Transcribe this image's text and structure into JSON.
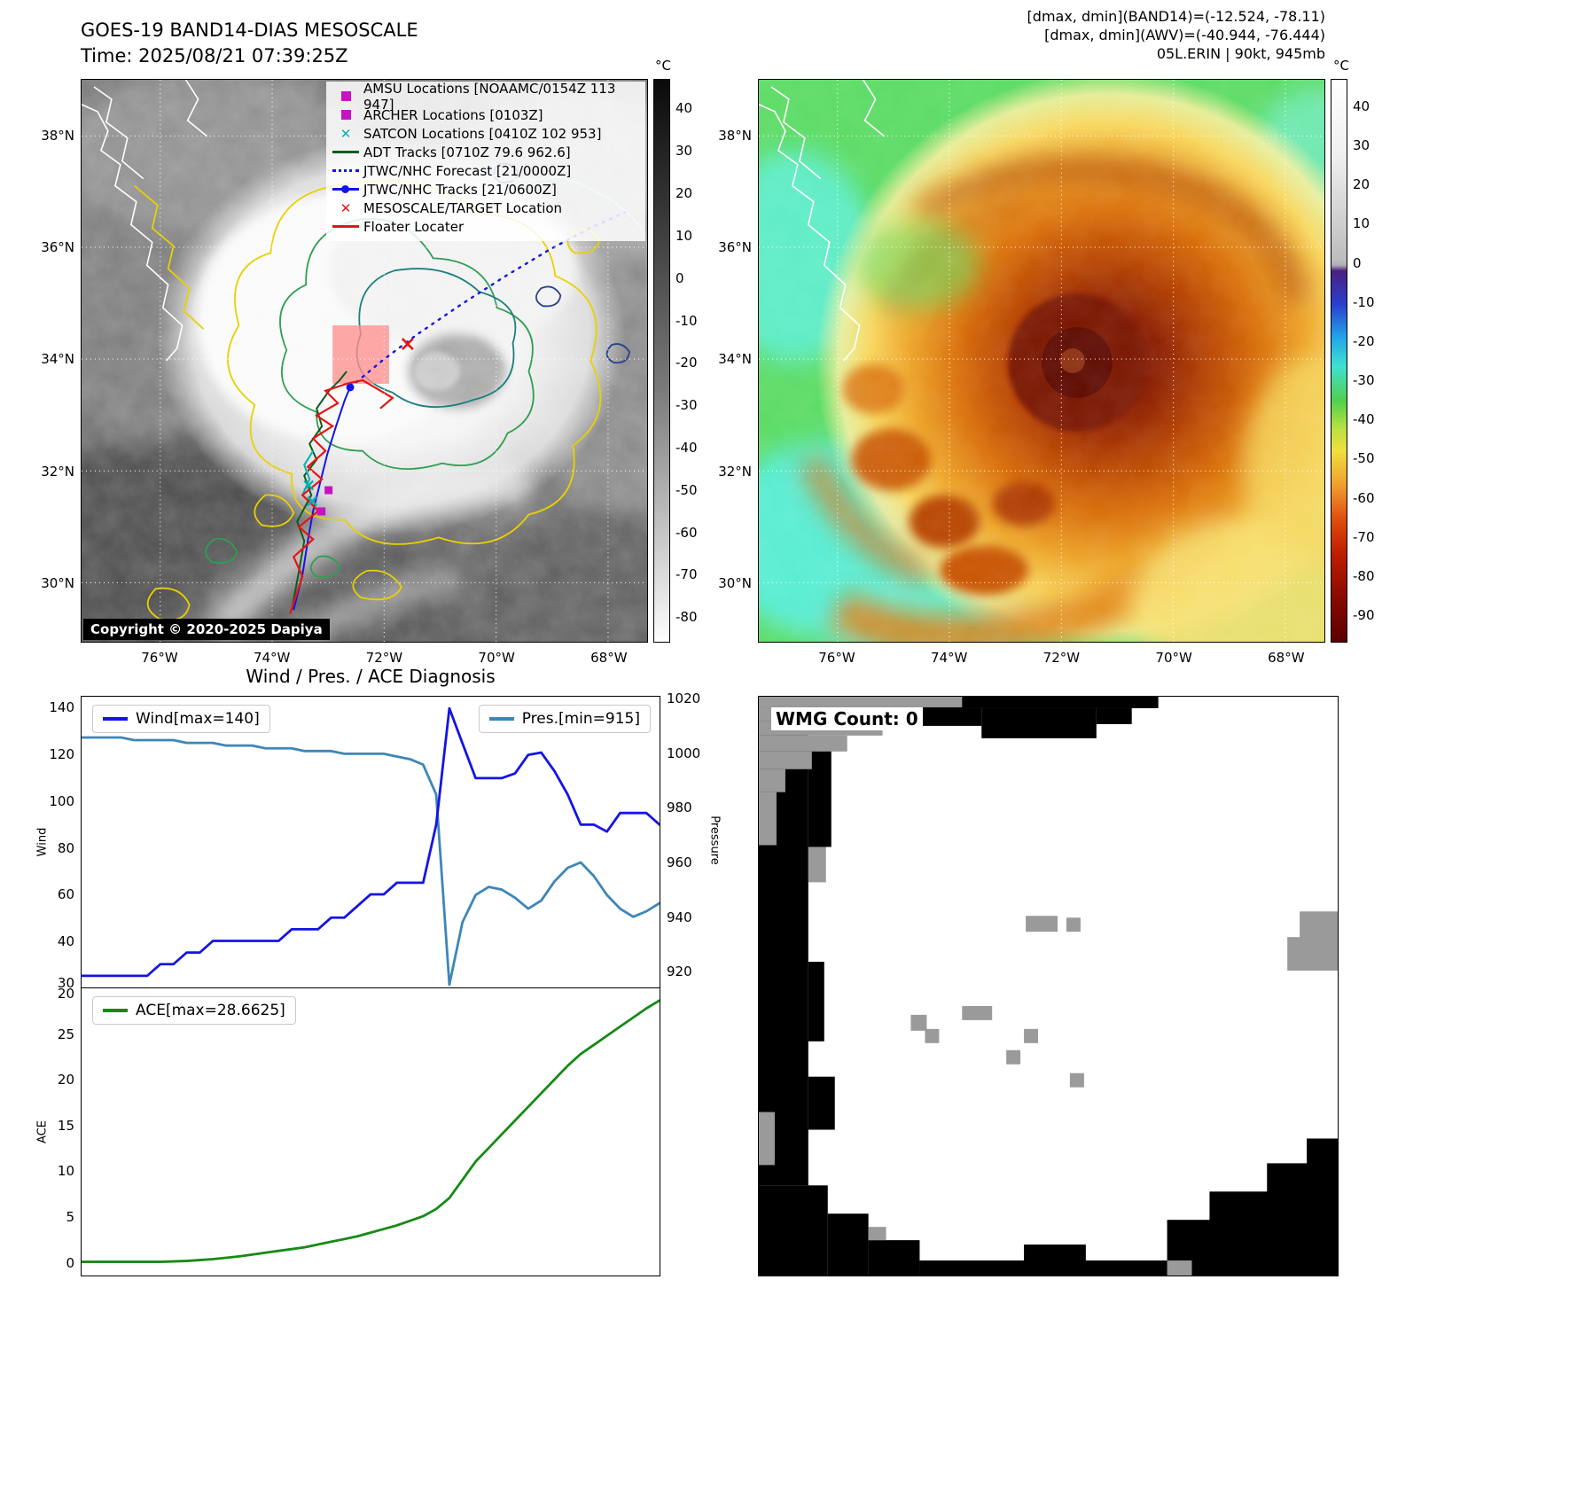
{
  "band14_panel": {
    "title": "GOES-19 BAND14-DIAS MESOSCALE",
    "time_line": "Time: 2025/08/21 07:39:25Z",
    "copyright": "Copyright © 2020-2025 Dapiya",
    "colorbar_unit": "°C",
    "colorbar_ticks": [
      40,
      30,
      20,
      10,
      0,
      -10,
      -20,
      -30,
      -40,
      -50,
      -60,
      -70,
      -80
    ],
    "lat_labels": [
      "38°N",
      "36°N",
      "34°N",
      "32°N",
      "30°N"
    ],
    "lon_labels": [
      "76°W",
      "74°W",
      "72°W",
      "70°W",
      "68°W"
    ],
    "legend": [
      {
        "label": "AMSU Locations [NOAAMC/0154Z 113 947]",
        "marker": "filled-square",
        "color": "#c513c5"
      },
      {
        "label": "ARCHER Locations [0103Z]",
        "marker": "filled-square",
        "color": "#c513c5"
      },
      {
        "label": "SATCON Locations [0410Z 102 953]",
        "marker": "x",
        "color": "#00b2b2"
      },
      {
        "label": "ADT Tracks [0710Z 79.6 962.6]",
        "marker": "line",
        "color": "#0b5d1e"
      },
      {
        "label": "JTWC/NHC Forecast [21/0000Z]",
        "marker": "dotted-line",
        "color": "#1414e6"
      },
      {
        "label": "JTWC/NHC Tracks [21/0600Z]",
        "marker": "line-with-dot",
        "color": "#1414e6"
      },
      {
        "label": "MESOSCALE/TARGET Location",
        "marker": "x",
        "color": "#e61414"
      },
      {
        "label": "Floater Locater",
        "marker": "line",
        "color": "#e61414"
      }
    ]
  },
  "awv_panel": {
    "header_line1": "[dmax, dmin](BAND14)=(-12.524, -78.11)",
    "header_line2": "[dmax, dmin](AWV)=(-40.944, -76.444)",
    "header_line3": "05L.ERIN | 90kt, 945mb",
    "colorbar_unit": "°C",
    "colorbar_ticks": [
      40,
      30,
      20,
      10,
      0,
      -10,
      -20,
      -30,
      -40,
      -50,
      -60,
      -70,
      -80,
      -90
    ],
    "lat_labels": [
      "38°N",
      "36°N",
      "34°N",
      "32°N",
      "30°N"
    ],
    "lon_labels": [
      "76°W",
      "74°W",
      "72°W",
      "70°W",
      "68°W"
    ]
  },
  "diagnosis_panel": {
    "title": "Wind / Pres. / ACE Diagnosis",
    "wind_ylabel": "Wind",
    "pressure_ylabel": "Pressure",
    "ace_ylabel": "ACE",
    "wind_legend": "Wind[max=140]",
    "pres_legend": "Pres.[min=915]",
    "ace_legend": "ACE[max=28.6625]"
  },
  "wmg_panel": {
    "count_label": "WMG Count: 0"
  },
  "chart_data": [
    {
      "type": "line",
      "title": "Wind / Pres. / ACE Diagnosis (upper subplot)",
      "x_note": "time index, no x tick labels shown",
      "n_points": 45,
      "series": [
        {
          "name": "Wind",
          "axis": "left",
          "color": "#1414e6",
          "values": [
            25,
            25,
            25,
            25,
            25,
            25,
            30,
            30,
            35,
            35,
            40,
            40,
            40,
            40,
            40,
            40,
            45,
            45,
            45,
            50,
            50,
            55,
            60,
            60,
            65,
            65,
            65,
            90,
            140,
            125,
            110,
            110,
            110,
            112,
            120,
            121,
            113,
            103,
            90,
            90,
            87,
            95,
            95,
            95,
            90
          ]
        },
        {
          "name": "Pres.",
          "axis": "right",
          "color": "#3d86b8",
          "values": [
            1006,
            1006,
            1006,
            1006,
            1005,
            1005,
            1005,
            1005,
            1004,
            1004,
            1004,
            1003,
            1003,
            1003,
            1002,
            1002,
            1002,
            1001,
            1001,
            1001,
            1000,
            1000,
            1000,
            1000,
            999,
            998,
            996,
            985,
            915,
            938,
            948,
            951,
            950,
            947,
            943,
            946,
            953,
            958,
            960,
            955,
            948,
            943,
            940,
            942,
            945
          ]
        }
      ],
      "left_ylim": [
        20,
        145
      ],
      "left_yticks": [
        20,
        40,
        60,
        80,
        100,
        120,
        140
      ],
      "right_ylim": [
        914,
        1021
      ],
      "right_yticks": [
        920,
        940,
        960,
        980,
        1000,
        1020
      ],
      "annotations": {
        "wind_max": 140,
        "pres_min": 915
      },
      "grid": false,
      "legend_position": "wind top-left, pressure top-right"
    },
    {
      "type": "line",
      "title": "Wind / Pres. / ACE Diagnosis (lower subplot)",
      "x_note": "time index, no x tick labels shown",
      "n_points": 45,
      "series": [
        {
          "name": "ACE",
          "axis": "left",
          "color": "#168a16",
          "values": [
            0,
            0,
            0,
            0,
            0,
            0,
            0,
            0.05,
            0.1,
            0.2,
            0.3,
            0.45,
            0.6,
            0.8,
            1.0,
            1.2,
            1.4,
            1.6,
            1.9,
            2.2,
            2.5,
            2.8,
            3.2,
            3.6,
            4.0,
            4.5,
            5.0,
            5.8,
            7.0,
            9.0,
            11.0,
            12.5,
            14.0,
            15.5,
            17.0,
            18.5,
            20.0,
            21.5,
            22.8,
            23.8,
            24.8,
            25.8,
            26.8,
            27.8,
            28.66
          ]
        }
      ],
      "ylim": [
        -1.5,
        30
      ],
      "yticks": [
        0,
        5,
        10,
        15,
        20,
        25,
        30
      ],
      "annotations": {
        "ace_max": 28.6625
      },
      "grid": false,
      "legend_position": "top-left"
    }
  ]
}
